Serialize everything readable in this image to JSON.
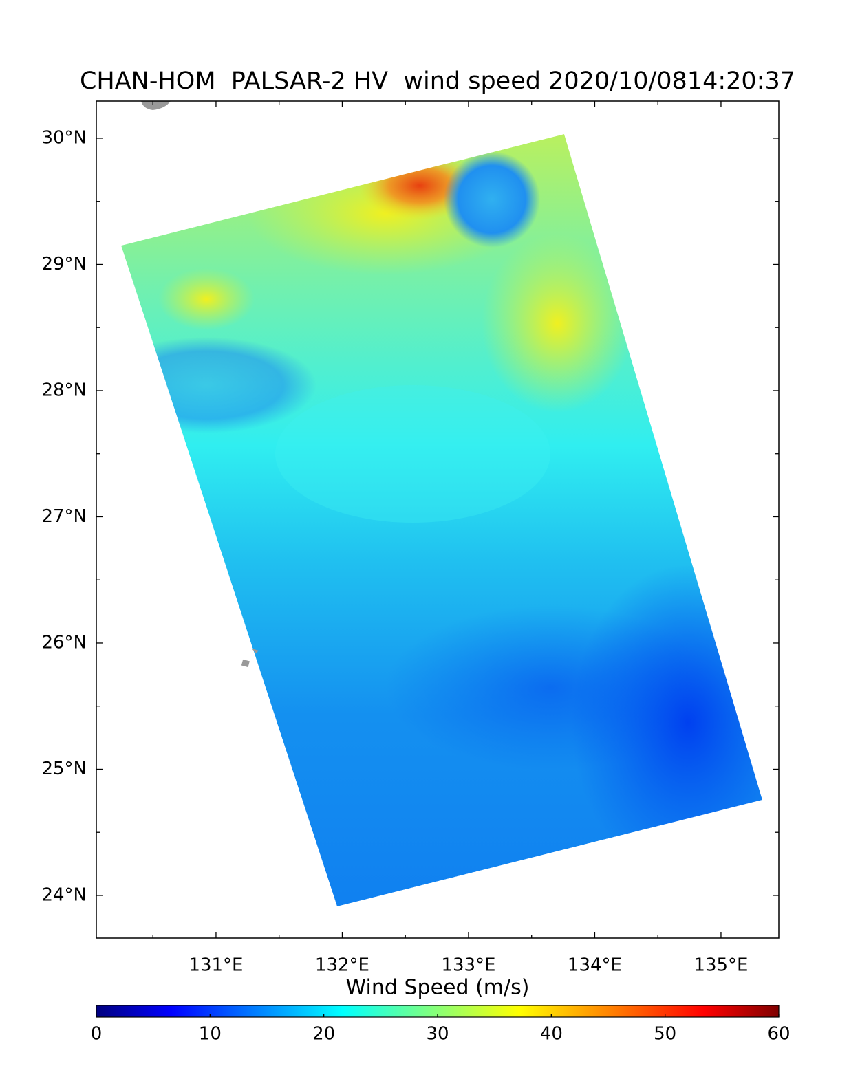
{
  "title": "CHAN-HOM  PALSAR-2 HV  wind speed 2020/10/0814:20:37",
  "map": {
    "xlim": [
      130.052,
      135.458
    ],
    "ylim": [
      23.662,
      30.294
    ],
    "xticks": [
      {
        "value": 131,
        "label": "131°E"
      },
      {
        "value": 132,
        "label": "132°E"
      },
      {
        "value": 133,
        "label": "133°E"
      },
      {
        "value": 134,
        "label": "134°E"
      },
      {
        "value": 135,
        "label": "135°E"
      }
    ],
    "yticks": [
      {
        "value": 24,
        "label": "24°N"
      },
      {
        "value": 25,
        "label": "25°N"
      },
      {
        "value": 26,
        "label": "26°N"
      },
      {
        "value": 27,
        "label": "27°N"
      },
      {
        "value": 28,
        "label": "28°N"
      },
      {
        "value": 29,
        "label": "29°N"
      },
      {
        "value": 30,
        "label": "30°N"
      }
    ],
    "xminorticks": [
      130.5,
      131.5,
      132.5,
      133.5,
      134.5
    ],
    "yminorticks": [
      24.5,
      25.5,
      26.5,
      27.5,
      28.5,
      29.5
    ]
  },
  "colorbar": {
    "label": "Wind Speed (m/s)",
    "clim": [
      0,
      60
    ],
    "ticks": [
      0,
      10,
      20,
      30,
      40,
      50,
      60
    ]
  }
}
